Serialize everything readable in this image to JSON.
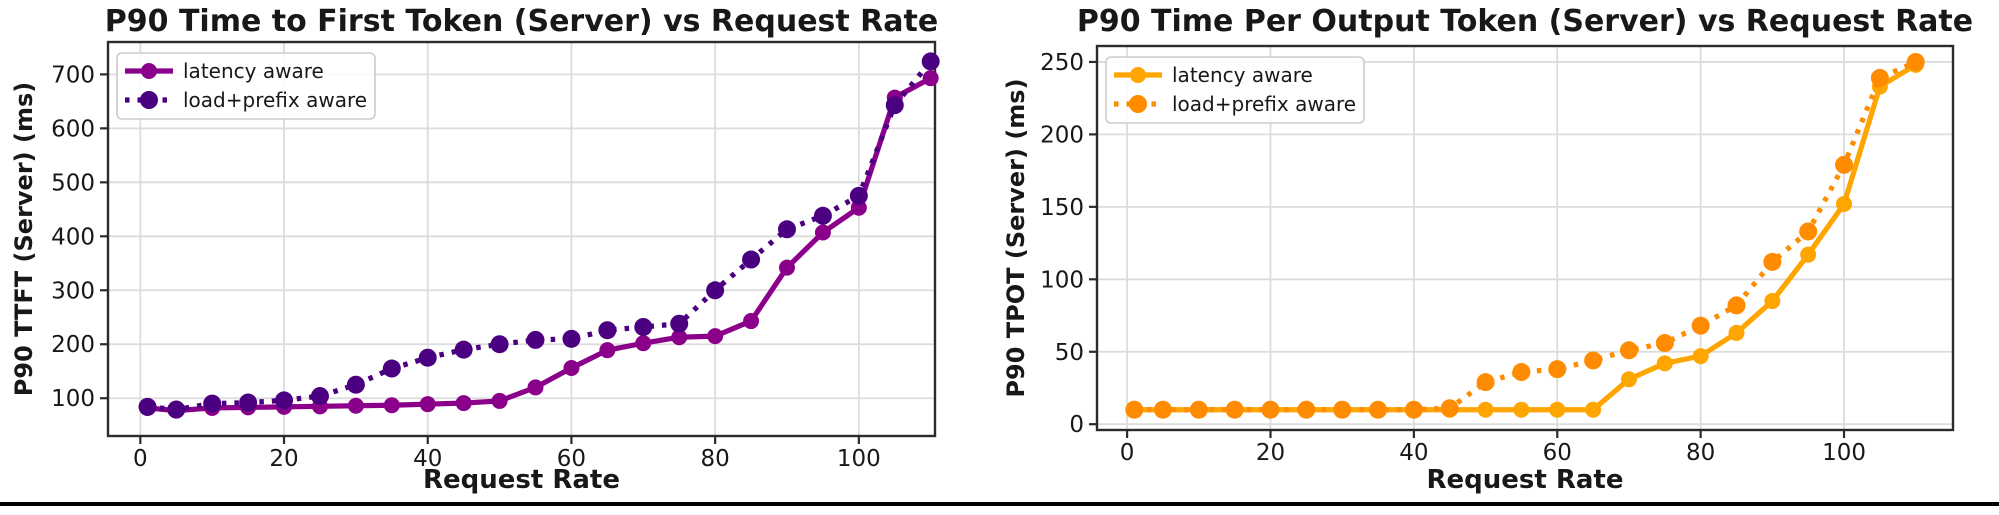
{
  "page": {
    "background": "#ffffff",
    "divider_color": "#000000"
  },
  "chart_data": [
    {
      "id": "ttft",
      "type": "line",
      "title": "P90 Time to First Token (Server) vs Request Rate",
      "xlabel": "Request Rate",
      "ylabel": "P90 TTFT (Server) (ms)",
      "x": [
        1,
        5,
        10,
        15,
        20,
        25,
        30,
        35,
        40,
        45,
        50,
        55,
        60,
        65,
        70,
        75,
        80,
        85,
        90,
        95,
        100,
        105,
        110
      ],
      "series": [
        {
          "name": "latency aware",
          "style": "solid",
          "color": "#8B008B",
          "values": [
            82,
            77,
            82,
            83,
            84,
            85,
            86,
            87,
            89,
            91,
            95,
            120,
            156,
            189,
            202,
            213,
            215,
            243,
            342,
            407,
            453,
            657,
            693
          ]
        },
        {
          "name": "load+prefix aware",
          "style": "dotted",
          "color": "#4B0082",
          "values": [
            84,
            79,
            90,
            92,
            96,
            104,
            125,
            155,
            175,
            190,
            200,
            208,
            210,
            226,
            232,
            238,
            300,
            357,
            413,
            438,
            475,
            643,
            724
          ]
        }
      ],
      "xticks": [
        0,
        20,
        40,
        60,
        80,
        100
      ],
      "yticks": [
        100,
        200,
        300,
        400,
        500,
        600,
        700
      ],
      "xlim": [
        -4.5,
        110.6
      ],
      "ylim": [
        30,
        760
      ],
      "grid": true,
      "legend_position": "upper left"
    },
    {
      "id": "tpot",
      "type": "line",
      "title": "P90 Time Per Output Token (Server) vs Request Rate",
      "xlabel": "Request Rate",
      "ylabel": "P90 TPOT (Server) (ms)",
      "x": [
        1,
        5,
        10,
        15,
        20,
        25,
        30,
        35,
        40,
        45,
        50,
        55,
        60,
        65,
        70,
        75,
        80,
        85,
        90,
        95,
        100,
        105,
        110
      ],
      "series": [
        {
          "name": "latency aware",
          "style": "solid",
          "color": "#FFA500",
          "values": [
            10,
            10,
            10,
            10,
            10,
            10,
            10,
            10,
            10,
            10,
            10,
            10,
            10,
            10,
            31,
            42,
            47,
            63,
            85,
            117,
            152,
            233,
            248
          ]
        },
        {
          "name": "load+prefix aware",
          "style": "dotted",
          "color": "#FF8C00",
          "values": [
            10,
            10,
            10,
            10,
            10,
            10,
            10,
            10,
            10,
            11,
            29,
            36,
            38,
            44,
            51,
            56,
            68,
            82,
            112,
            133,
            179,
            239,
            250
          ]
        }
      ],
      "xticks": [
        0,
        20,
        40,
        60,
        80,
        100
      ],
      "yticks": [
        0,
        50,
        100,
        150,
        200,
        250
      ],
      "xlim": [
        -4.2,
        115.2
      ],
      "ylim": [
        -4,
        261
      ],
      "grid": true,
      "legend_position": "upper left"
    }
  ]
}
